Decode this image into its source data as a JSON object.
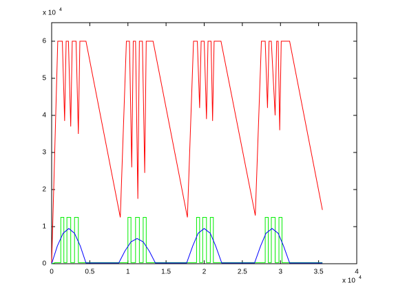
{
  "chart_data": {
    "type": "line",
    "y_multiplier": "x 10",
    "y_exponent": "4",
    "x_multiplier": "x 10",
    "x_exponent": "4",
    "xlim": [
      0,
      4
    ],
    "xticks": [
      0,
      0.5,
      1,
      1.5,
      2,
      2.5,
      3,
      3.5,
      4
    ],
    "ylim": [
      0,
      6.5
    ],
    "yticks": [
      0,
      1,
      2,
      3,
      4,
      5,
      6
    ],
    "grid": false,
    "series": [
      {
        "color": "#ff0000",
        "x": [
          0,
          0.08,
          0.14,
          0.17,
          0.19,
          0.22,
          0.25,
          0.27,
          0.32,
          0.35,
          0.37,
          0.45,
          0.9,
          0.98,
          1.02,
          1.05,
          1.07,
          1.1,
          1.13,
          1.15,
          1.19,
          1.22,
          1.24,
          1.33,
          1.78,
          1.86,
          1.91,
          1.94,
          1.96,
          2.0,
          2.03,
          2.05,
          2.09,
          2.11,
          2.13,
          2.22,
          2.67,
          2.75,
          2.8,
          2.83,
          2.85,
          2.88,
          2.93,
          2.95,
          2.97,
          2.99,
          3.01,
          3.12,
          3.55
        ],
        "values": [
          0,
          6,
          6,
          3.85,
          6,
          6,
          3.7,
          6,
          6,
          3.5,
          6,
          6,
          1.25,
          6,
          6,
          2.6,
          6,
          6,
          1.75,
          6,
          6,
          2.45,
          6,
          6,
          1.25,
          6,
          6,
          4.2,
          6,
          6,
          3.9,
          6,
          6,
          3.85,
          6,
          6,
          1.3,
          6,
          6,
          4.2,
          6,
          6,
          4.0,
          6,
          6,
          3.6,
          6,
          6,
          1.45
        ]
      },
      {
        "color": "#00ee00",
        "x": [
          0,
          0.05,
          0.12,
          0.12,
          0.16,
          0.16,
          0.2,
          0.2,
          0.25,
          0.25,
          0.3,
          0.3,
          0.35,
          0.35,
          1.0,
          1.0,
          1.04,
          1.04,
          1.1,
          1.1,
          1.15,
          1.15,
          1.2,
          1.2,
          1.24,
          1.24,
          1.9,
          1.9,
          1.94,
          1.94,
          1.98,
          1.98,
          2.03,
          2.03,
          2.08,
          2.08,
          2.12,
          2.12,
          2.8,
          2.8,
          2.84,
          2.84,
          2.88,
          2.88,
          2.93,
          2.93,
          2.98,
          2.98,
          3.02,
          3.02,
          3.55
        ],
        "values": [
          0,
          0.03,
          0.03,
          1.25,
          1.25,
          0.03,
          0.03,
          1.25,
          1.25,
          0.03,
          0.03,
          1.25,
          1.25,
          0.03,
          0.03,
          1.25,
          1.25,
          0.03,
          0.03,
          1.25,
          1.25,
          0.03,
          0.03,
          1.25,
          1.25,
          0.03,
          0.03,
          1.25,
          1.25,
          0.03,
          0.03,
          1.25,
          1.25,
          0.03,
          0.03,
          1.25,
          1.25,
          0.03,
          0.03,
          1.25,
          1.25,
          0.03,
          0.03,
          1.25,
          1.25,
          0.03,
          0.03,
          1.25,
          1.25,
          0.03,
          0.03
        ]
      },
      {
        "color": "#0000ff",
        "x": [
          0,
          0.075,
          0.15,
          0.225,
          0.3,
          0.375,
          0.45,
          0.88,
          0.96,
          1.04,
          1.12,
          1.2,
          1.28,
          1.36,
          1.77,
          1.85,
          1.92,
          2.0,
          2.08,
          2.15,
          2.23,
          2.66,
          2.74,
          2.81,
          2.89,
          2.97,
          3.04,
          3.12,
          3.55
        ],
        "values": [
          0,
          0.48,
          0.82,
          0.95,
          0.82,
          0.48,
          0.02,
          0.02,
          0.34,
          0.59,
          0.68,
          0.59,
          0.34,
          0.02,
          0.02,
          0.48,
          0.82,
          0.95,
          0.82,
          0.48,
          0.02,
          0.02,
          0.48,
          0.82,
          0.95,
          0.82,
          0.48,
          0.02,
          0.02
        ]
      }
    ]
  }
}
